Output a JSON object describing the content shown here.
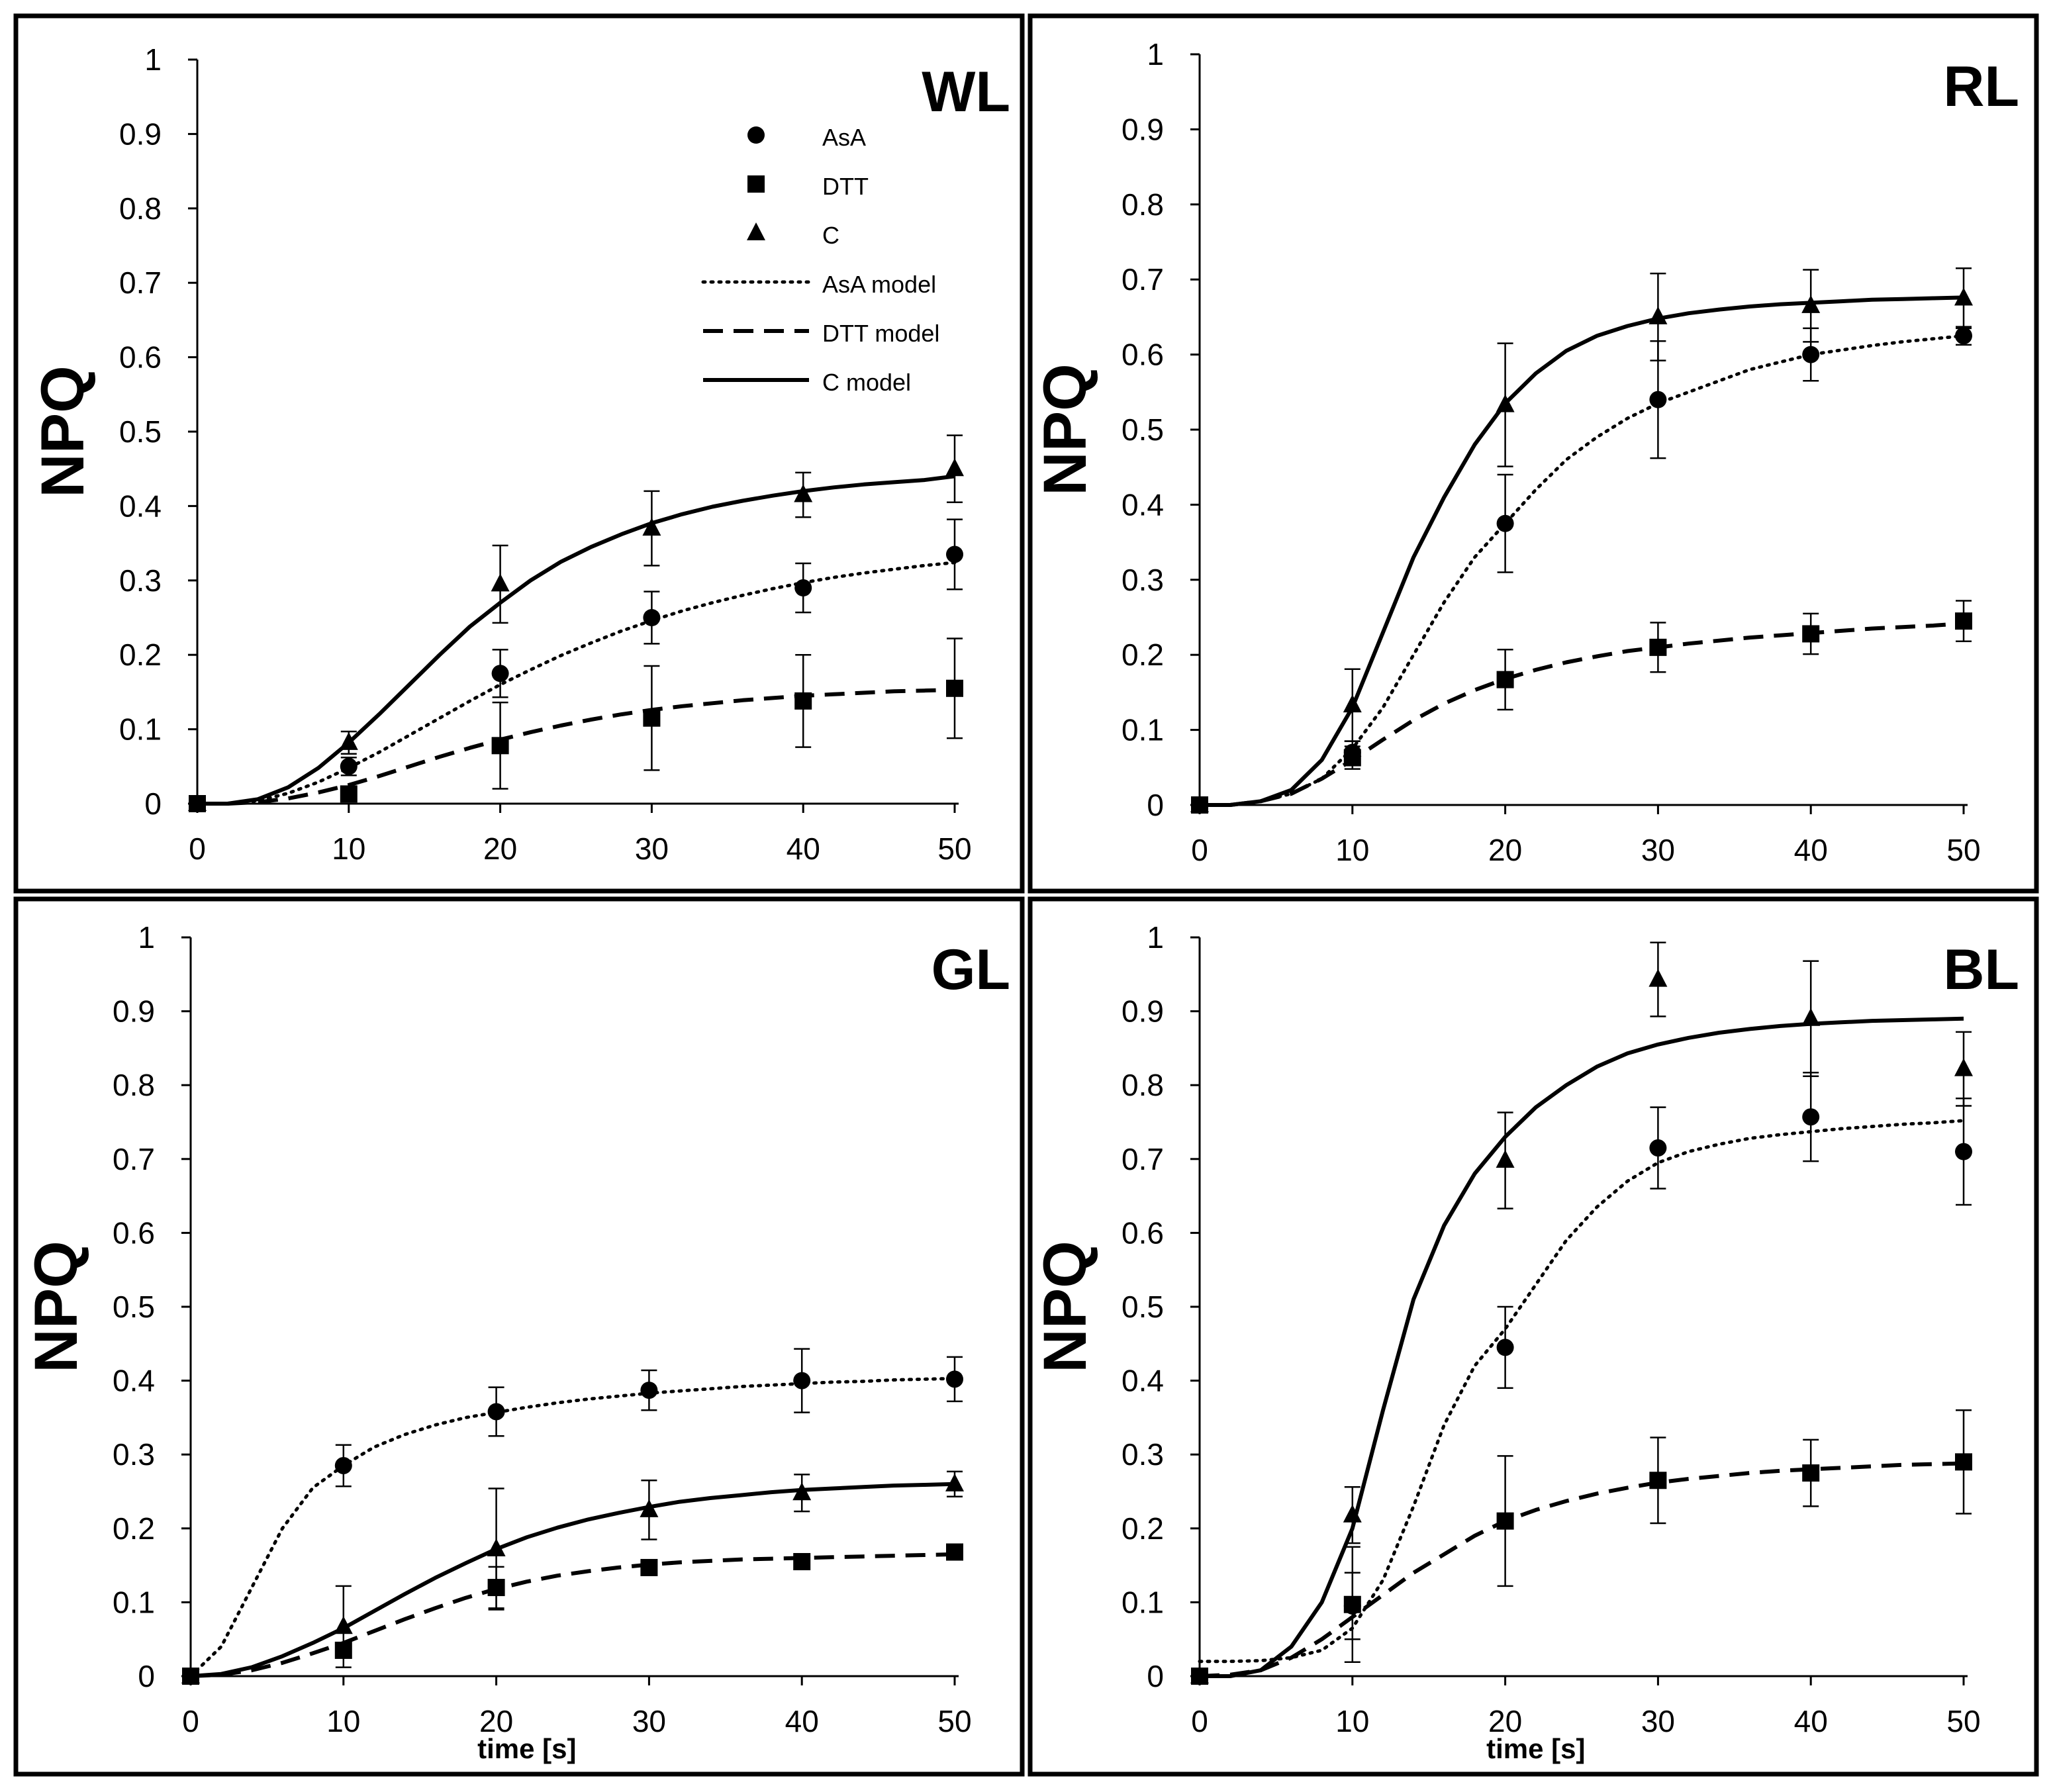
{
  "figure": {
    "tick_labels_x": [
      "0",
      "10",
      "20",
      "30",
      "40",
      "50"
    ],
    "tick_labels_y": [
      "0",
      "0.1",
      "0.2",
      "0.3",
      "0.4",
      "0.5",
      "0.6",
      "0.7",
      "0.8",
      "0.9",
      "1"
    ]
  },
  "legend": {
    "items": [
      {
        "label": "AsA",
        "marker": "circle"
      },
      {
        "label": "DTT",
        "marker": "square"
      },
      {
        "label": "C",
        "marker": "triangle"
      },
      {
        "label": "AsA model",
        "line": "dotted"
      },
      {
        "label": "DTT model",
        "line": "dashed"
      },
      {
        "label": "C model",
        "line": "solid"
      }
    ]
  },
  "chart_data": [
    {
      "type": "line",
      "title": "WL",
      "ylabel": "NPQ",
      "xlabel": "",
      "xlim": [
        0,
        50
      ],
      "ylim": [
        0,
        1
      ],
      "x": [
        0,
        10,
        20,
        30,
        40,
        50
      ],
      "series": [
        {
          "name": "AsA",
          "values": [
            0,
            0.05,
            0.175,
            0.25,
            0.29,
            0.335
          ],
          "errors": [
            0,
            0.012,
            0.032,
            0.035,
            0.033,
            0.047
          ]
        },
        {
          "name": "DTT",
          "values": [
            0,
            0.013,
            0.078,
            0.115,
            0.138,
            0.155
          ],
          "errors": [
            0,
            0.005,
            0.058,
            0.07,
            0.062,
            0.067
          ]
        },
        {
          "name": "C",
          "values": [
            0,
            0.082,
            0.295,
            0.37,
            0.415,
            0.45
          ],
          "errors": [
            0,
            0.015,
            0.052,
            0.05,
            0.03,
            0.045
          ]
        }
      ],
      "models": [
        {
          "name": "AsA model",
          "x": [
            0,
            2,
            4,
            6,
            8,
            10,
            12,
            14,
            16,
            18,
            20,
            22,
            24,
            26,
            28,
            30,
            32,
            34,
            36,
            38,
            40,
            42,
            44,
            46,
            48,
            50
          ],
          "values": [
            0,
            0,
            0.004,
            0.014,
            0.029,
            0.048,
            0.069,
            0.092,
            0.115,
            0.138,
            0.16,
            0.18,
            0.199,
            0.216,
            0.232,
            0.246,
            0.259,
            0.27,
            0.28,
            0.289,
            0.297,
            0.304,
            0.31,
            0.315,
            0.32,
            0.324
          ]
        },
        {
          "name": "DTT model",
          "x": [
            0,
            2,
            4,
            6,
            8,
            10,
            12,
            14,
            16,
            18,
            20,
            22,
            24,
            26,
            28,
            30,
            32,
            34,
            36,
            38,
            40,
            42,
            44,
            46,
            48,
            50
          ],
          "values": [
            0,
            0,
            0.002,
            0.007,
            0.015,
            0.025,
            0.037,
            0.05,
            0.063,
            0.075,
            0.086,
            0.096,
            0.105,
            0.113,
            0.12,
            0.126,
            0.131,
            0.135,
            0.139,
            0.142,
            0.145,
            0.147,
            0.149,
            0.151,
            0.152,
            0.153
          ]
        },
        {
          "name": "C model",
          "x": [
            0,
            2,
            4,
            6,
            8,
            10,
            12,
            14,
            16,
            18,
            20,
            22,
            24,
            26,
            28,
            30,
            32,
            34,
            36,
            38,
            40,
            42,
            44,
            46,
            48,
            50
          ],
          "values": [
            0,
            0,
            0.006,
            0.022,
            0.048,
            0.082,
            0.12,
            0.16,
            0.2,
            0.238,
            0.27,
            0.3,
            0.325,
            0.345,
            0.362,
            0.377,
            0.389,
            0.399,
            0.407,
            0.414,
            0.42,
            0.425,
            0.429,
            0.432,
            0.435,
            0.44
          ]
        }
      ]
    },
    {
      "type": "line",
      "title": "RL",
      "ylabel": "NPQ",
      "xlabel": "",
      "xlim": [
        0,
        50
      ],
      "ylim": [
        0,
        1
      ],
      "x": [
        0,
        10,
        20,
        30,
        40,
        50
      ],
      "series": [
        {
          "name": "AsA",
          "values": [
            0,
            0.07,
            0.375,
            0.54,
            0.6,
            0.625
          ],
          "errors": [
            0,
            0.015,
            0.065,
            0.078,
            0.035,
            0.012
          ]
        },
        {
          "name": "DTT",
          "values": [
            0,
            0.063,
            0.167,
            0.21,
            0.228,
            0.245
          ],
          "errors": [
            0,
            0.015,
            0.04,
            0.033,
            0.027,
            0.027
          ]
        },
        {
          "name": "C",
          "values": [
            0,
            0.133,
            0.533,
            0.65,
            0.665,
            0.675
          ],
          "errors": [
            0,
            0.048,
            0.082,
            0.058,
            0.048,
            0.04
          ]
        }
      ],
      "models": [
        {
          "name": "AsA model",
          "x": [
            0,
            2,
            4,
            6,
            8,
            10,
            12,
            14,
            16,
            18,
            20,
            22,
            24,
            26,
            28,
            30,
            32,
            34,
            36,
            38,
            40,
            42,
            44,
            46,
            48,
            50
          ],
          "values": [
            0,
            0,
            0.005,
            0.015,
            0.035,
            0.075,
            0.13,
            0.2,
            0.27,
            0.33,
            0.375,
            0.42,
            0.46,
            0.49,
            0.515,
            0.535,
            0.55,
            0.565,
            0.58,
            0.59,
            0.6,
            0.606,
            0.612,
            0.617,
            0.621,
            0.625
          ]
        },
        {
          "name": "DTT model",
          "x": [
            0,
            2,
            4,
            6,
            8,
            10,
            12,
            14,
            16,
            18,
            20,
            22,
            24,
            26,
            28,
            30,
            32,
            34,
            36,
            38,
            40,
            42,
            44,
            46,
            48,
            50
          ],
          "values": [
            0,
            0,
            0.005,
            0.015,
            0.035,
            0.06,
            0.087,
            0.113,
            0.135,
            0.153,
            0.168,
            0.18,
            0.19,
            0.198,
            0.205,
            0.21,
            0.215,
            0.219,
            0.223,
            0.226,
            0.229,
            0.232,
            0.235,
            0.237,
            0.239,
            0.242
          ]
        },
        {
          "name": "C model",
          "x": [
            0,
            2,
            4,
            6,
            8,
            10,
            12,
            14,
            16,
            18,
            20,
            22,
            24,
            26,
            28,
            30,
            32,
            34,
            36,
            38,
            40,
            42,
            44,
            46,
            48,
            50
          ],
          "values": [
            0,
            0,
            0.005,
            0.02,
            0.06,
            0.13,
            0.23,
            0.33,
            0.41,
            0.48,
            0.535,
            0.575,
            0.605,
            0.625,
            0.638,
            0.648,
            0.655,
            0.66,
            0.664,
            0.667,
            0.669,
            0.671,
            0.673,
            0.674,
            0.675,
            0.676
          ]
        }
      ]
    },
    {
      "type": "line",
      "title": "GL",
      "ylabel": "NPQ",
      "xlabel": "time [s]",
      "xlim": [
        0,
        50
      ],
      "ylim": [
        0,
        1
      ],
      "x": [
        0,
        10,
        20,
        30,
        40,
        50
      ],
      "series": [
        {
          "name": "AsA",
          "values": [
            0,
            0.285,
            0.358,
            0.387,
            0.4,
            0.402
          ],
          "errors": [
            0,
            0.028,
            0.033,
            0.027,
            0.043,
            0.03
          ]
        },
        {
          "name": "DTT",
          "values": [
            0,
            0.035,
            0.12,
            0.147,
            0.155,
            0.168
          ],
          "errors": [
            0,
            0.01,
            0.028,
            0,
            0,
            0
          ]
        },
        {
          "name": "C",
          "values": [
            0,
            0.067,
            0.172,
            0.225,
            0.248,
            0.26
          ],
          "errors": [
            0,
            0.055,
            0.082,
            0.04,
            0.025,
            0.017
          ]
        }
      ],
      "models": [
        {
          "name": "AsA model",
          "x": [
            0,
            2,
            4,
            6,
            8,
            10,
            12,
            14,
            16,
            18,
            20,
            22,
            24,
            26,
            28,
            30,
            32,
            34,
            36,
            38,
            40,
            42,
            44,
            46,
            48,
            50
          ],
          "values": [
            0,
            0.04,
            0.12,
            0.2,
            0.255,
            0.285,
            0.31,
            0.327,
            0.34,
            0.35,
            0.357,
            0.364,
            0.37,
            0.375,
            0.379,
            0.383,
            0.386,
            0.389,
            0.392,
            0.394,
            0.396,
            0.398,
            0.399,
            0.401,
            0.402,
            0.403
          ]
        },
        {
          "name": "DTT model",
          "x": [
            0,
            2,
            4,
            6,
            8,
            10,
            12,
            14,
            16,
            18,
            20,
            22,
            24,
            26,
            28,
            30,
            32,
            34,
            36,
            38,
            40,
            42,
            44,
            46,
            48,
            50
          ],
          "values": [
            0,
            0.002,
            0.008,
            0.018,
            0.031,
            0.045,
            0.061,
            0.077,
            0.092,
            0.106,
            0.118,
            0.128,
            0.136,
            0.142,
            0.147,
            0.151,
            0.154,
            0.156,
            0.158,
            0.159,
            0.16,
            0.161,
            0.162,
            0.163,
            0.164,
            0.165
          ]
        },
        {
          "name": "C model",
          "x": [
            0,
            2,
            4,
            6,
            8,
            10,
            12,
            14,
            16,
            18,
            20,
            22,
            24,
            26,
            28,
            30,
            32,
            34,
            36,
            38,
            40,
            42,
            44,
            46,
            48,
            50
          ],
          "values": [
            0,
            0.003,
            0.012,
            0.027,
            0.045,
            0.065,
            0.088,
            0.111,
            0.133,
            0.153,
            0.172,
            0.188,
            0.201,
            0.212,
            0.221,
            0.229,
            0.236,
            0.241,
            0.245,
            0.249,
            0.252,
            0.254,
            0.256,
            0.258,
            0.259,
            0.26
          ]
        }
      ]
    },
    {
      "type": "line",
      "title": "BL",
      "ylabel": "NPQ",
      "xlabel": "time [s]",
      "xlim": [
        0,
        50
      ],
      "ylim": [
        0,
        1
      ],
      "x": [
        0,
        10,
        20,
        30,
        40,
        50
      ],
      "series": [
        {
          "name": "AsA",
          "values": [
            0,
            0.095,
            0.445,
            0.715,
            0.757,
            0.71
          ],
          "errors": [
            0,
            0.045,
            0.055,
            0.055,
            0.06,
            0.072
          ]
        },
        {
          "name": "DTT",
          "values": [
            0,
            0.097,
            0.21,
            0.265,
            0.275,
            0.29
          ],
          "errors": [
            0,
            0.078,
            0.088,
            0.058,
            0.045,
            0.07
          ]
        },
        {
          "name": "C",
          "values": [
            0,
            0.218,
            0.698,
            0.943,
            0.89,
            0.822
          ],
          "errors": [
            0,
            0.038,
            0.065,
            0.05,
            0.078,
            0.05
          ]
        }
      ],
      "models": [
        {
          "name": "AsA model",
          "x": [
            0,
            2,
            4,
            6,
            8,
            10,
            12,
            14,
            16,
            18,
            20,
            22,
            24,
            26,
            28,
            30,
            32,
            34,
            36,
            38,
            40,
            42,
            44,
            46,
            48,
            50
          ],
          "values": [
            0.02,
            0.02,
            0.021,
            0.025,
            0.035,
            0.065,
            0.13,
            0.23,
            0.34,
            0.42,
            0.47,
            0.53,
            0.59,
            0.635,
            0.67,
            0.695,
            0.71,
            0.72,
            0.728,
            0.733,
            0.737,
            0.741,
            0.744,
            0.747,
            0.749,
            0.752
          ]
        },
        {
          "name": "DTT model",
          "x": [
            0,
            2,
            4,
            6,
            8,
            10,
            12,
            14,
            16,
            18,
            20,
            22,
            24,
            26,
            28,
            30,
            32,
            34,
            36,
            38,
            40,
            42,
            44,
            46,
            48,
            50
          ],
          "values": [
            0,
            0.002,
            0.008,
            0.025,
            0.05,
            0.08,
            0.11,
            0.14,
            0.165,
            0.19,
            0.21,
            0.225,
            0.237,
            0.247,
            0.255,
            0.262,
            0.267,
            0.271,
            0.275,
            0.278,
            0.28,
            0.282,
            0.284,
            0.286,
            0.287,
            0.288
          ]
        },
        {
          "name": "C model",
          "x": [
            0,
            2,
            4,
            6,
            8,
            10,
            12,
            14,
            16,
            18,
            20,
            22,
            24,
            26,
            28,
            30,
            32,
            34,
            36,
            38,
            40,
            42,
            44,
            46,
            48,
            50
          ],
          "values": [
            0,
            0,
            0.008,
            0.04,
            0.1,
            0.2,
            0.36,
            0.51,
            0.61,
            0.68,
            0.73,
            0.77,
            0.8,
            0.825,
            0.843,
            0.855,
            0.864,
            0.871,
            0.876,
            0.88,
            0.883,
            0.885,
            0.887,
            0.888,
            0.889,
            0.89
          ]
        }
      ]
    }
  ]
}
